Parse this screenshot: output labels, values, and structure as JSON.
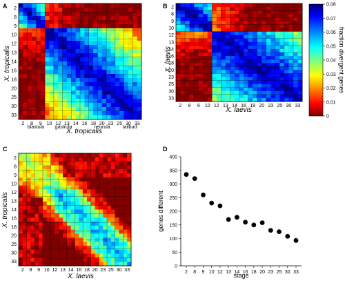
{
  "figure": {
    "panels": {
      "A": {
        "label": "A",
        "xlabel": "X. tropicalis",
        "ylabel": "X. tropicalis",
        "phase_labels": [
          "blastula",
          "gastrula",
          "neurula",
          "tailbud"
        ]
      },
      "B": {
        "label": "B",
        "xlabel": "X. laevis",
        "ylabel": "X. laevis"
      },
      "C": {
        "label": "C",
        "xlabel": "X. laevis",
        "ylabel": "X. tropicalis"
      },
      "D": {
        "label": "D"
      }
    },
    "colorbar": {
      "label": "fraction divergent genes",
      "ticks": [
        "0",
        "0.01",
        "0.02",
        "0.03",
        "0.04",
        "0.05",
        "0.06",
        "0.07",
        "0.08"
      ]
    }
  },
  "chart_data": [
    {
      "type": "heatmap",
      "panel": "A",
      "xlabel": "X. tropicalis",
      "ylabel": "X. tropicalis",
      "x_tick_labels": [
        "2",
        "8",
        "9",
        "10",
        "12",
        "13",
        "14",
        "16",
        "18",
        "20",
        "23",
        "25",
        "30",
        "33"
      ],
      "y_tick_labels": [
        "2",
        "8",
        "9",
        "10",
        "12",
        "13",
        "14",
        "16",
        "18",
        "20",
        "25",
        "30",
        "33"
      ],
      "color_range": [
        0,
        0.08
      ],
      "phases": [
        "blastula",
        "gastrula",
        "neurula",
        "tailbud"
      ]
    },
    {
      "type": "heatmap",
      "panel": "B",
      "xlabel": "X. laevis",
      "ylabel": "X. laevis",
      "x_tick_labels": [
        "2",
        "8",
        "9",
        "10",
        "12",
        "13",
        "14",
        "16",
        "18",
        "20",
        "23",
        "25",
        "30",
        "33"
      ],
      "y_tick_labels": [
        "2",
        "8",
        "9",
        "10",
        "12",
        "13",
        "14",
        "16",
        "18",
        "20",
        "23",
        "25",
        "30",
        "33"
      ],
      "color_range": [
        0,
        0.08
      ]
    },
    {
      "type": "heatmap",
      "panel": "C",
      "xlabel": "X. laevis",
      "ylabel": "X. tropicalis",
      "x_tick_labels": [
        "2",
        "8",
        "9",
        "10",
        "12",
        "13",
        "14",
        "16",
        "18",
        "20",
        "23",
        "25",
        "30",
        "33"
      ],
      "y_tick_labels": [
        "2",
        "8",
        "9",
        "10",
        "12",
        "13",
        "14",
        "16",
        "18",
        "20",
        "25",
        "30",
        "33"
      ],
      "color_range": [
        0,
        0.08
      ]
    },
    {
      "type": "scatter",
      "panel": "D",
      "xlabel": "stage",
      "ylabel": "genes different",
      "categories": [
        "2",
        "8",
        "9",
        "10",
        "12",
        "13",
        "14",
        "16",
        "18",
        "20",
        "23",
        "25",
        "30",
        "33"
      ],
      "values": [
        335,
        320,
        260,
        230,
        220,
        170,
        178,
        160,
        150,
        158,
        130,
        125,
        108,
        93
      ],
      "ylim": [
        0,
        400
      ],
      "yticks": [
        "0",
        "50",
        "100",
        "150",
        "200",
        "250",
        "300",
        "350",
        "400"
      ],
      "marker_color": "#000000"
    }
  ],
  "colors": {
    "jet": [
      "#00007f",
      "#0000ff",
      "#007fff",
      "#00ffff",
      "#7fff7f",
      "#ffff00",
      "#ff7f00",
      "#ff0000",
      "#7f0000"
    ]
  }
}
